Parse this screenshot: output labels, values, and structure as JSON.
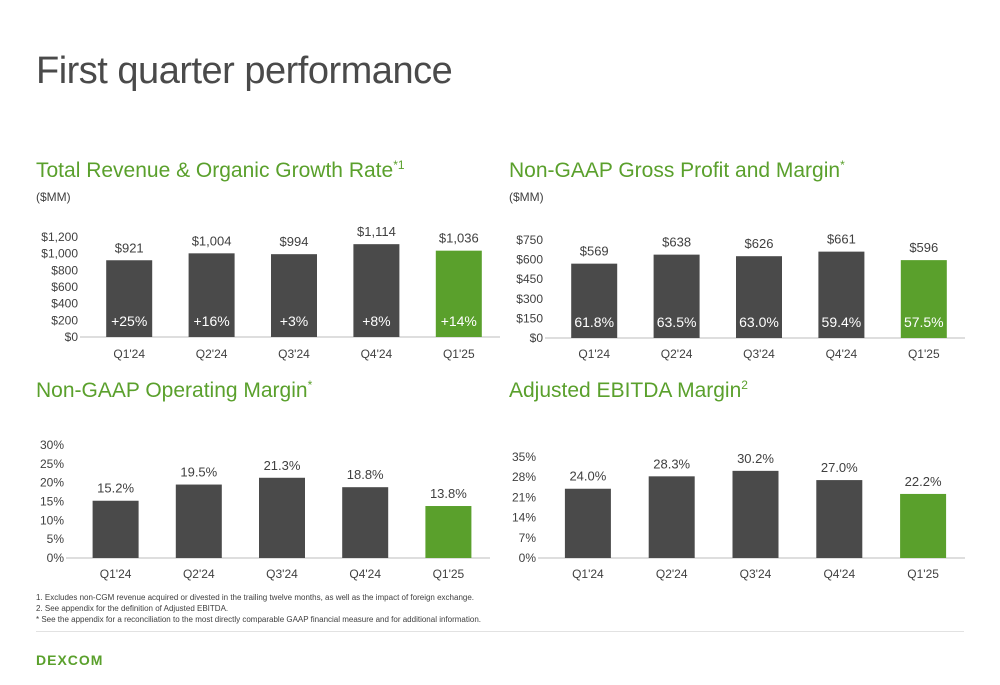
{
  "page": {
    "title": "First quarter performance",
    "footnotes": [
      "1.    Excludes non-CGM revenue acquired or divested in the trailing twelve months, as well as the impact of foreign exchange.",
      "2.    See appendix for the definition of Adjusted EBITDA.",
      "* See the appendix for a reconciliation to the most directly comparable GAAP financial measure and for additional information."
    ],
    "logo": "DEXCOM"
  },
  "colors": {
    "bar": "#4a4a4a",
    "highlight": "#5aa02c",
    "title": "#5aa02c",
    "text": "#404040"
  },
  "chart_data": [
    {
      "type": "bar",
      "title": "Total Revenue & Organic Growth Rate",
      "title_sup": "*1",
      "unit": "($MM)",
      "categories": [
        "Q1'24",
        "Q2'24",
        "Q3'24",
        "Q4'24",
        "Q1'25"
      ],
      "values": [
        921,
        1004,
        994,
        1114,
        1036
      ],
      "value_labels": [
        "$921",
        "$1,004",
        "$994",
        "$1,114",
        "$1,036"
      ],
      "inner_labels": [
        "+25%",
        "+16%",
        "+3%",
        "+8%",
        "+14%"
      ],
      "yticks": [
        "$0",
        "$200",
        "$400",
        "$600",
        "$800",
        "$1,000",
        "$1,200"
      ],
      "ylim": [
        0,
        1200
      ],
      "highlight_index": 4
    },
    {
      "type": "bar",
      "title": "Non-GAAP Gross Profit and Margin",
      "title_sup": "*",
      "unit": "($MM)",
      "categories": [
        "Q1'24",
        "Q2'24",
        "Q3'24",
        "Q4'24",
        "Q1'25"
      ],
      "values": [
        569,
        638,
        626,
        661,
        596
      ],
      "value_labels": [
        "$569",
        "$638",
        "$626",
        "$661",
        "$596"
      ],
      "inner_labels": [
        "61.8%",
        "63.5%",
        "63.0%",
        "59.4%",
        "57.5%"
      ],
      "yticks": [
        "$0",
        "$150",
        "$300",
        "$450",
        "$600",
        "$750"
      ],
      "ylim": [
        0,
        750
      ],
      "highlight_index": 4
    },
    {
      "type": "bar",
      "title": "Non-GAAP Operating Margin",
      "title_sup": "*",
      "unit": "",
      "categories": [
        "Q1'24",
        "Q2'24",
        "Q3'24",
        "Q4'24",
        "Q1'25"
      ],
      "values": [
        15.2,
        19.5,
        21.3,
        18.8,
        13.8
      ],
      "value_labels": [
        "15.2%",
        "19.5%",
        "21.3%",
        "18.8%",
        "13.8%"
      ],
      "inner_labels": [],
      "yticks": [
        "0%",
        "5%",
        "10%",
        "15%",
        "20%",
        "25%",
        "30%"
      ],
      "ylim": [
        0,
        30
      ],
      "highlight_index": 4
    },
    {
      "type": "bar",
      "title": "Adjusted EBITDA Margin",
      "title_sup": "2",
      "unit": "",
      "categories": [
        "Q1'24",
        "Q2'24",
        "Q3'24",
        "Q4'24",
        "Q1'25"
      ],
      "values": [
        24.0,
        28.3,
        30.2,
        27.0,
        22.2
      ],
      "value_labels": [
        "24.0%",
        "28.3%",
        "30.2%",
        "27.0%",
        "22.2%"
      ],
      "inner_labels": [],
      "yticks": [
        "0%",
        "7%",
        "14%",
        "21%",
        "28%",
        "35%"
      ],
      "ylim": [
        0,
        35
      ],
      "highlight_index": 4
    }
  ]
}
